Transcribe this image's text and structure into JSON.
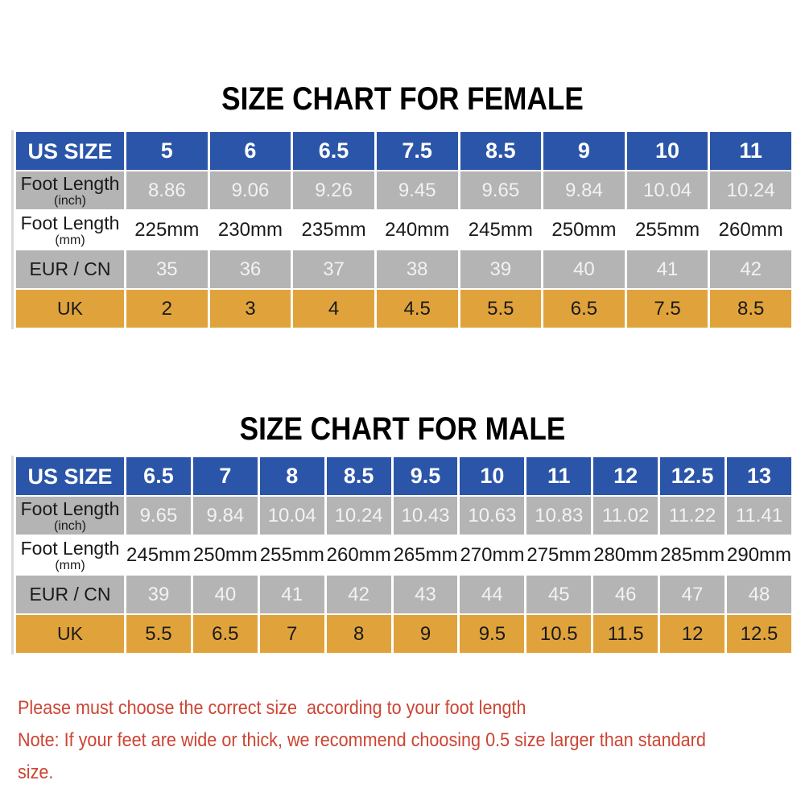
{
  "colors": {
    "header_blue": "#2b55a8",
    "row_gray": "#b4b4b4",
    "row_orange": "#e0a33c",
    "note_red": "#cc4433",
    "header_text": "#ffffff",
    "muted_white": "#f2f2f2",
    "body_text": "#1a1a1a"
  },
  "female": {
    "title": "SIZE CHART FOR FEMALE",
    "rows": [
      {
        "label": "US SIZE",
        "sub": "",
        "style": "blue",
        "values": [
          "5",
          "6",
          "6.5",
          "7.5",
          "8.5",
          "9",
          "10",
          "11"
        ]
      },
      {
        "label": "Foot Length",
        "sub": "(inch)",
        "style": "gray",
        "values": [
          "8.86",
          "9.06",
          "9.26",
          "9.45",
          "9.65",
          "9.84",
          "10.04",
          "10.24"
        ]
      },
      {
        "label": "Foot Length",
        "sub": "(mm)",
        "style": "white",
        "values": [
          "225mm",
          "230mm",
          "235mm",
          "240mm",
          "245mm",
          "250mm",
          "255mm",
          "260mm"
        ]
      },
      {
        "label": "EUR / CN",
        "sub": "",
        "style": "gray",
        "values": [
          "35",
          "36",
          "37",
          "38",
          "39",
          "40",
          "41",
          "42"
        ]
      },
      {
        "label": "UK",
        "sub": "",
        "style": "orange",
        "values": [
          "2",
          "3",
          "4",
          "4.5",
          "5.5",
          "6.5",
          "7.5",
          "8.5"
        ]
      }
    ]
  },
  "male": {
    "title": "SIZE CHART FOR MALE",
    "rows": [
      {
        "label": "US SIZE",
        "sub": "",
        "style": "blue",
        "values": [
          "6.5",
          "7",
          "8",
          "8.5",
          "9.5",
          "10",
          "11",
          "12",
          "12.5",
          "13"
        ]
      },
      {
        "label": "Foot Length",
        "sub": "(inch)",
        "style": "gray",
        "values": [
          "9.65",
          "9.84",
          "10.04",
          "10.24",
          "10.43",
          "10.63",
          "10.83",
          "11.02",
          "11.22",
          "11.41"
        ]
      },
      {
        "label": "Foot Length",
        "sub": "(mm)",
        "style": "white",
        "values": [
          "245mm",
          "250mm",
          "255mm",
          "260mm",
          "265mm",
          "270mm",
          "275mm",
          "280mm",
          "285mm",
          "290mm"
        ]
      },
      {
        "label": "EUR / CN",
        "sub": "",
        "style": "gray",
        "values": [
          "39",
          "40",
          "41",
          "42",
          "43",
          "44",
          "45",
          "46",
          "47",
          "48"
        ]
      },
      {
        "label": "UK",
        "sub": "",
        "style": "orange",
        "values": [
          "5.5",
          "6.5",
          "7",
          "8",
          "9",
          "9.5",
          "10.5",
          "11.5",
          "12",
          "12.5"
        ]
      }
    ]
  },
  "footnotes": [
    "Please must choose the correct size  according to your foot length",
    "Note: If your feet are wide or thick, we recommend choosing 0.5 size larger than standard size."
  ],
  "chart_data": [
    {
      "type": "table",
      "title": "SIZE CHART FOR FEMALE",
      "row_headers": [
        "US SIZE",
        "Foot Length (inch)",
        "Foot Length (mm)",
        "EUR / CN",
        "UK"
      ],
      "rows": [
        [
          "5",
          "6",
          "6.5",
          "7.5",
          "8.5",
          "9",
          "10",
          "11"
        ],
        [
          "8.86",
          "9.06",
          "9.26",
          "9.45",
          "9.65",
          "9.84",
          "10.04",
          "10.24"
        ],
        [
          "225mm",
          "230mm",
          "235mm",
          "240mm",
          "245mm",
          "250mm",
          "255mm",
          "260mm"
        ],
        [
          "35",
          "36",
          "37",
          "38",
          "39",
          "40",
          "41",
          "42"
        ],
        [
          "2",
          "3",
          "4",
          "4.5",
          "5.5",
          "6.5",
          "7.5",
          "8.5"
        ]
      ]
    },
    {
      "type": "table",
      "title": "SIZE CHART FOR MALE",
      "row_headers": [
        "US SIZE",
        "Foot Length (inch)",
        "Foot Length (mm)",
        "EUR / CN",
        "UK"
      ],
      "rows": [
        [
          "6.5",
          "7",
          "8",
          "8.5",
          "9.5",
          "10",
          "11",
          "12",
          "12.5",
          "13"
        ],
        [
          "9.65",
          "9.84",
          "10.04",
          "10.24",
          "10.43",
          "10.63",
          "10.83",
          "11.02",
          "11.22",
          "11.41"
        ],
        [
          "245mm",
          "250mm",
          "255mm",
          "260mm",
          "265mm",
          "270mm",
          "275mm",
          "280mm",
          "285mm",
          "290mm"
        ],
        [
          "39",
          "40",
          "41",
          "42",
          "43",
          "44",
          "45",
          "46",
          "47",
          "48"
        ],
        [
          "5.5",
          "6.5",
          "7",
          "8",
          "9",
          "9.5",
          "10.5",
          "11.5",
          "12",
          "12.5"
        ]
      ]
    }
  ]
}
